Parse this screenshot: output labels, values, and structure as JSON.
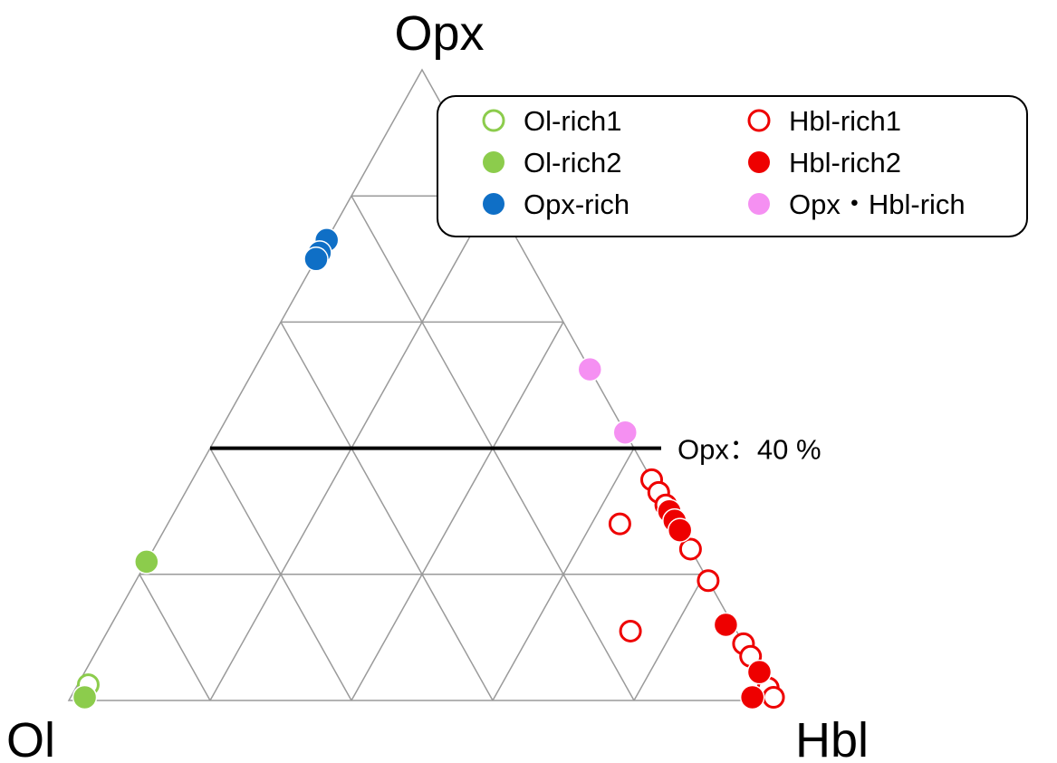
{
  "chart_data": {
    "type": "ternary-scatter",
    "axes": {
      "top": "Opx",
      "left": "Ol",
      "right": "Hbl"
    },
    "grid": true,
    "grid_step_percent": 20,
    "legend_position": "top-right",
    "annotation": {
      "label": "Opx：40 %",
      "component": "Opx",
      "value": 40
    },
    "colors": {
      "green": "#8ccc4c",
      "red": "#ee0000",
      "blue": "#0f6fc6",
      "pink": "#f590f2",
      "grid": "#9a9a9a"
    },
    "series": [
      {
        "name": "Ol-rich1",
        "marker": "open",
        "color": "#8ccc4c",
        "points": [
          {
            "ol": 96,
            "opx": 2.5,
            "hbl": 1.5
          }
        ]
      },
      {
        "name": "Ol-rich2",
        "marker": "filled",
        "color": "#8ccc4c",
        "points": [
          {
            "ol": 97.5,
            "opx": 0.5,
            "hbl": 2
          },
          {
            "ol": 78,
            "opx": 22,
            "hbl": 0
          }
        ]
      },
      {
        "name": "Opx-rich",
        "marker": "filled",
        "color": "#0f6fc6",
        "points": [
          {
            "ol": 27,
            "opx": 73,
            "hbl": 0
          },
          {
            "ol": 29,
            "opx": 71,
            "hbl": 0
          },
          {
            "ol": 30,
            "opx": 70,
            "hbl": 0
          }
        ]
      },
      {
        "name": "Hbl-rich1",
        "marker": "open",
        "color": "#ee0000",
        "points": [
          {
            "ol": 0,
            "opx": 35,
            "hbl": 65
          },
          {
            "ol": 0,
            "opx": 33,
            "hbl": 67
          },
          {
            "ol": 0,
            "opx": 31,
            "hbl": 69
          },
          {
            "ol": 0,
            "opx": 30,
            "hbl": 70
          },
          {
            "ol": 0,
            "opx": 29.5,
            "hbl": 70.5
          },
          {
            "ol": 0,
            "opx": 28,
            "hbl": 72
          },
          {
            "ol": 0,
            "opx": 27,
            "hbl": 73
          },
          {
            "ol": 0,
            "opx": 24,
            "hbl": 76
          },
          {
            "ol": 0,
            "opx": 19,
            "hbl": 81
          },
          {
            "ol": 8,
            "opx": 28,
            "hbl": 64
          },
          {
            "ol": 15,
            "opx": 11,
            "hbl": 74
          },
          {
            "ol": 0,
            "opx": 9,
            "hbl": 91
          },
          {
            "ol": 0,
            "opx": 7,
            "hbl": 93
          },
          {
            "ol": 0,
            "opx": 2,
            "hbl": 98
          },
          {
            "ol": 0,
            "opx": 0.5,
            "hbl": 99.5
          }
        ]
      },
      {
        "name": "Hbl-rich2",
        "marker": "filled",
        "color": "#ee0000",
        "points": [
          {
            "ol": 0,
            "opx": 30,
            "hbl": 70
          },
          {
            "ol": 0,
            "opx": 28.5,
            "hbl": 71.5
          },
          {
            "ol": 0,
            "opx": 27,
            "hbl": 73
          },
          {
            "ol": 1,
            "opx": 12,
            "hbl": 87
          },
          {
            "ol": 0,
            "opx": 4.5,
            "hbl": 95.5
          },
          {
            "ol": 3,
            "opx": 0.5,
            "hbl": 96.5
          }
        ]
      },
      {
        "name": "Opx・Hbl-rich",
        "marker": "filled",
        "color": "#f590f2",
        "points": [
          {
            "ol": 0,
            "opx": 52.5,
            "hbl": 47.5
          },
          {
            "ol": 0,
            "opx": 42.5,
            "hbl": 57.5
          }
        ]
      }
    ]
  }
}
